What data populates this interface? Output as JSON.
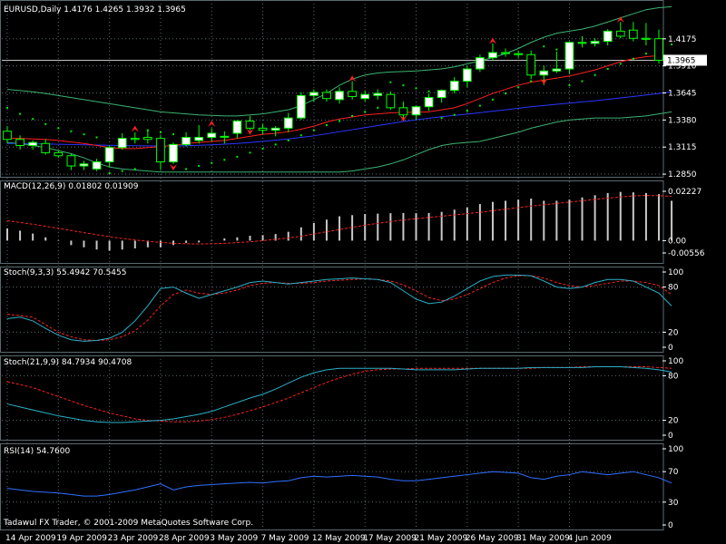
{
  "colors": {
    "background": "#000000",
    "text": "#ffffff",
    "grid": "#5a6a70",
    "candle_up_fill": "#ffffff",
    "candle_down_fill": "#000000",
    "candle_stroke": "#00ff00",
    "bollinger": "#3cb371",
    "ma_fast": "#ff2020",
    "ma_slow": "#2a36ff",
    "sar": "#00ee00",
    "fractal": "#ff2020",
    "macd_hist": "#c8c8c8",
    "macd_signal": "#ff2020",
    "stoch_main": "#2ab0c8",
    "stoch_signal": "#ff2020",
    "rsi": "#3070ff",
    "current_price_box": "#ffffff"
  },
  "footer_text": "Tadawul FX Trader, © 2001-2009 MetaQuotes Software Corp.",
  "chart_data": {
    "type": "candlestick",
    "x_labels": [
      {
        "label": "14 Apr 2009",
        "index": 0
      },
      {
        "label": "19 Apr 2009",
        "index": 4
      },
      {
        "label": "23 Apr 2009",
        "index": 8
      },
      {
        "label": "28 Apr 2009",
        "index": 12
      },
      {
        "label": "3 May 2009",
        "index": 16
      },
      {
        "label": "7 May 2009",
        "index": 20
      },
      {
        "label": "12 May 2009",
        "index": 24
      },
      {
        "label": "17 May 2009",
        "index": 28
      },
      {
        "label": "21 May 2009",
        "index": 32
      },
      {
        "label": "26 May 2009",
        "index": 36
      },
      {
        "label": "31 May 2009",
        "index": 40
      },
      {
        "label": "4 Jun 2009",
        "index": 44
      }
    ],
    "main": {
      "title": "EURUSD,Daily  1.4176 1.4265 1.3932 1.3965",
      "ylim": [
        1.2815,
        1.4555
      ],
      "ticks": [
        "1.4175",
        "1.3910",
        "1.3645",
        "1.3380",
        "1.3115",
        "1.2850"
      ],
      "current_price": "1.3965",
      "candles": [
        {
          "o": 1.327,
          "h": 1.332,
          "l": 1.315,
          "c": 1.319
        },
        {
          "o": 1.319,
          "h": 1.323,
          "l": 1.309,
          "c": 1.313
        },
        {
          "o": 1.313,
          "h": 1.318,
          "l": 1.309,
          "c": 1.316
        },
        {
          "o": 1.315,
          "h": 1.319,
          "l": 1.304,
          "c": 1.306
        },
        {
          "o": 1.306,
          "h": 1.308,
          "l": 1.301,
          "c": 1.303
        },
        {
          "o": 1.303,
          "h": 1.305,
          "l": 1.289,
          "c": 1.293
        },
        {
          "o": 1.293,
          "h": 1.298,
          "l": 1.289,
          "c": 1.295
        },
        {
          "o": 1.29,
          "h": 1.3,
          "l": 1.288,
          "c": 1.297
        },
        {
          "o": 1.297,
          "h": 1.313,
          "l": 1.292,
          "c": 1.311
        },
        {
          "o": 1.311,
          "h": 1.325,
          "l": 1.309,
          "c": 1.32
        },
        {
          "o": 1.32,
          "h": 1.326,
          "l": 1.315,
          "c": 1.319
        },
        {
          "o": 1.321,
          "h": 1.328,
          "l": 1.315,
          "c": 1.319
        },
        {
          "o": 1.32,
          "h": 1.323,
          "l": 1.289,
          "c": 1.297
        },
        {
          "o": 1.297,
          "h": 1.316,
          "l": 1.295,
          "c": 1.314
        },
        {
          "o": 1.314,
          "h": 1.326,
          "l": 1.312,
          "c": 1.321
        },
        {
          "o": 1.318,
          "h": 1.333,
          "l": 1.315,
          "c": 1.321
        },
        {
          "o": 1.321,
          "h": 1.33,
          "l": 1.317,
          "c": 1.325
        },
        {
          "o": 1.322,
          "h": 1.327,
          "l": 1.315,
          "c": 1.322
        },
        {
          "o": 1.325,
          "h": 1.338,
          "l": 1.32,
          "c": 1.337
        },
        {
          "o": 1.337,
          "h": 1.342,
          "l": 1.328,
          "c": 1.33
        },
        {
          "o": 1.33,
          "h": 1.334,
          "l": 1.324,
          "c": 1.328
        },
        {
          "o": 1.328,
          "h": 1.332,
          "l": 1.322,
          "c": 1.33
        },
        {
          "o": 1.33,
          "h": 1.345,
          "l": 1.326,
          "c": 1.34
        },
        {
          "o": 1.34,
          "h": 1.365,
          "l": 1.338,
          "c": 1.362
        },
        {
          "o": 1.362,
          "h": 1.368,
          "l": 1.356,
          "c": 1.365
        },
        {
          "o": 1.365,
          "h": 1.368,
          "l": 1.356,
          "c": 1.359
        },
        {
          "o": 1.358,
          "h": 1.37,
          "l": 1.354,
          "c": 1.366
        },
        {
          "o": 1.366,
          "h": 1.376,
          "l": 1.358,
          "c": 1.361
        },
        {
          "o": 1.359,
          "h": 1.367,
          "l": 1.356,
          "c": 1.363
        },
        {
          "o": 1.362,
          "h": 1.368,
          "l": 1.358,
          "c": 1.364
        },
        {
          "o": 1.363,
          "h": 1.366,
          "l": 1.348,
          "c": 1.35
        },
        {
          "o": 1.35,
          "h": 1.356,
          "l": 1.338,
          "c": 1.343
        },
        {
          "o": 1.343,
          "h": 1.352,
          "l": 1.338,
          "c": 1.351
        },
        {
          "o": 1.351,
          "h": 1.364,
          "l": 1.347,
          "c": 1.36
        },
        {
          "o": 1.36,
          "h": 1.368,
          "l": 1.355,
          "c": 1.367
        },
        {
          "o": 1.367,
          "h": 1.38,
          "l": 1.364,
          "c": 1.376
        },
        {
          "o": 1.376,
          "h": 1.391,
          "l": 1.37,
          "c": 1.388
        },
        {
          "o": 1.388,
          "h": 1.402,
          "l": 1.385,
          "c": 1.399
        },
        {
          "o": 1.399,
          "h": 1.413,
          "l": 1.396,
          "c": 1.404
        },
        {
          "o": 1.404,
          "h": 1.408,
          "l": 1.4,
          "c": 1.403
        },
        {
          "o": 1.403,
          "h": 1.406,
          "l": 1.399,
          "c": 1.402
        },
        {
          "o": 1.402,
          "h": 1.406,
          "l": 1.378,
          "c": 1.382
        },
        {
          "o": 1.382,
          "h": 1.391,
          "l": 1.372,
          "c": 1.386
        },
        {
          "o": 1.386,
          "h": 1.405,
          "l": 1.384,
          "c": 1.388
        },
        {
          "o": 1.388,
          "h": 1.415,
          "l": 1.383,
          "c": 1.414
        },
        {
          "o": 1.414,
          "h": 1.42,
          "l": 1.409,
          "c": 1.413
        },
        {
          "o": 1.413,
          "h": 1.418,
          "l": 1.41,
          "c": 1.415
        },
        {
          "o": 1.415,
          "h": 1.427,
          "l": 1.411,
          "c": 1.425
        },
        {
          "o": 1.425,
          "h": 1.434,
          "l": 1.418,
          "c": 1.42
        },
        {
          "o": 1.426,
          "h": 1.434,
          "l": 1.415,
          "c": 1.418
        },
        {
          "o": 1.418,
          "h": 1.433,
          "l": 1.411,
          "c": 1.417
        },
        {
          "o": 1.4176,
          "h": 1.4265,
          "l": 1.3932,
          "c": 1.3965
        }
      ],
      "bb_upper": [
        1.368,
        1.3668,
        1.3656,
        1.364,
        1.362,
        1.36,
        1.358,
        1.356,
        1.354,
        1.352,
        1.35,
        1.348,
        1.346,
        1.345,
        1.344,
        1.343,
        1.3425,
        1.342,
        1.342,
        1.343,
        1.344,
        1.346,
        1.348,
        1.352,
        1.358,
        1.364,
        1.372,
        1.378,
        1.382,
        1.384,
        1.385,
        1.3855,
        1.386,
        1.387,
        1.388,
        1.39,
        1.393,
        1.396,
        1.399,
        1.403,
        1.408,
        1.414,
        1.419,
        1.423,
        1.425,
        1.427,
        1.43,
        1.434,
        1.438,
        1.442,
        1.446,
        1.448,
        1.449
      ],
      "bb_lower": [
        1.316,
        1.315,
        1.313,
        1.311,
        1.308,
        1.305,
        1.301,
        1.296,
        1.292,
        1.29,
        1.289,
        1.288,
        1.287,
        1.287,
        1.287,
        1.287,
        1.287,
        1.287,
        1.287,
        1.287,
        1.287,
        1.287,
        1.287,
        1.287,
        1.287,
        1.287,
        1.287,
        1.288,
        1.29,
        1.292,
        1.295,
        1.299,
        1.304,
        1.309,
        1.313,
        1.315,
        1.316,
        1.317,
        1.32,
        1.323,
        1.326,
        1.33,
        1.333,
        1.336,
        1.338,
        1.339,
        1.34,
        1.34,
        1.34,
        1.341,
        1.342,
        1.344,
        1.346
      ],
      "ma_fast": [
        1.32,
        1.32,
        1.3195,
        1.319,
        1.318,
        1.3165,
        1.315,
        1.313,
        1.311,
        1.31,
        1.31,
        1.311,
        1.312,
        1.313,
        1.315,
        1.316,
        1.317,
        1.318,
        1.32,
        1.322,
        1.324,
        1.325,
        1.3265,
        1.329,
        1.332,
        1.336,
        1.339,
        1.341,
        1.343,
        1.344,
        1.345,
        1.3455,
        1.3455,
        1.346,
        1.348,
        1.35,
        1.354,
        1.359,
        1.364,
        1.368,
        1.372,
        1.375,
        1.377,
        1.379,
        1.381,
        1.384,
        1.387,
        1.391,
        1.395,
        1.398,
        1.4,
        1.401,
        1.4015
      ],
      "ma_slow": [
        1.315,
        1.315,
        1.3148,
        1.3145,
        1.3142,
        1.314,
        1.3137,
        1.3135,
        1.3132,
        1.313,
        1.3128,
        1.3127,
        1.3126,
        1.3126,
        1.3128,
        1.3132,
        1.3137,
        1.3143,
        1.315,
        1.316,
        1.317,
        1.3182,
        1.3195,
        1.321,
        1.3225,
        1.3245,
        1.3265,
        1.3285,
        1.3305,
        1.3325,
        1.3345,
        1.3365,
        1.3382,
        1.3398,
        1.3412,
        1.3425,
        1.3438,
        1.3452,
        1.3466,
        1.348,
        1.3495,
        1.351,
        1.3522,
        1.3534,
        1.3545,
        1.3557,
        1.3569,
        1.3582,
        1.3596,
        1.361,
        1.3625,
        1.364,
        1.3655
      ],
      "sar": [
        1.35,
        1.344,
        1.339,
        1.334,
        1.33,
        1.327,
        1.324,
        1.321,
        1.286,
        1.288,
        1.29,
        1.328,
        1.326,
        1.324,
        1.29,
        1.293,
        1.296,
        1.299,
        1.302,
        1.306,
        1.31,
        1.314,
        1.318,
        1.323,
        1.328,
        1.333,
        1.337,
        1.342,
        1.346,
        1.35,
        1.375,
        1.372,
        1.369,
        1.366,
        1.34,
        1.343,
        1.347,
        1.352,
        1.358,
        1.364,
        1.37,
        1.376,
        1.41,
        1.407,
        1.372,
        1.376,
        1.382,
        1.388,
        1.393,
        1.398,
        1.403,
        1.408,
        1.412
      ],
      "fractals_up": [
        {
          "i": 10,
          "v": 1.329
        },
        {
          "i": 16,
          "v": 1.334
        },
        {
          "i": 27,
          "v": 1.378
        },
        {
          "i": 38,
          "v": 1.415
        },
        {
          "i": 48,
          "v": 1.436
        }
      ],
      "fractals_down": [
        {
          "i": 13,
          "v": 1.292
        },
        {
          "i": 19,
          "v": 1.327
        },
        {
          "i": 31,
          "v": 1.34
        },
        {
          "i": 42,
          "v": 1.376
        }
      ]
    },
    "macd": {
      "title": "MACD(12,26,9) 0.01802 0.01909",
      "ylim": [
        -0.00556,
        0.02227
      ],
      "ticks": [
        "0.02227",
        "0.00",
        "-0.00556"
      ],
      "hist": [
        0.0055,
        0.0045,
        0.0032,
        0.0015,
        0.0,
        -0.002,
        -0.003,
        -0.004,
        -0.0045,
        -0.004,
        -0.0035,
        -0.003,
        -0.003,
        -0.002,
        -0.001,
        -0.0008,
        0.0,
        0.001,
        0.0015,
        0.0022,
        0.0025,
        0.003,
        0.004,
        0.006,
        0.008,
        0.0095,
        0.011,
        0.0115,
        0.012,
        0.0122,
        0.0124,
        0.0125,
        0.0124,
        0.0125,
        0.013,
        0.014,
        0.015,
        0.0165,
        0.0175,
        0.018,
        0.0185,
        0.019,
        0.018,
        0.018,
        0.0185,
        0.0195,
        0.0205,
        0.0215,
        0.022,
        0.0218,
        0.0215,
        0.021,
        0.018
      ],
      "signal": [
        0.009,
        0.0082,
        0.0074,
        0.0065,
        0.0056,
        0.0046,
        0.0036,
        0.0027,
        0.0018,
        0.001,
        0.0003,
        -0.0003,
        -0.0008,
        -0.0012,
        -0.0014,
        -0.0015,
        -0.0014,
        -0.0012,
        -0.0009,
        -0.0005,
        0.0,
        0.0006,
        0.0012,
        0.002,
        0.003,
        0.004,
        0.005,
        0.006,
        0.007,
        0.0078,
        0.0086,
        0.0093,
        0.0099,
        0.0105,
        0.011,
        0.0116,
        0.0122,
        0.0128,
        0.0135,
        0.0142,
        0.0149,
        0.0156,
        0.0162,
        0.0168,
        0.0174,
        0.018,
        0.0186,
        0.0192,
        0.0197,
        0.0202,
        0.0204,
        0.0203,
        0.02
      ]
    },
    "stoch1": {
      "title": "Stoch(9,3,3) 55.4942 70.5455",
      "ylim": [
        0,
        100
      ],
      "ticks": [
        "100",
        "80",
        "20",
        "0"
      ],
      "main": [
        38,
        40,
        35,
        25,
        16,
        10,
        8,
        9,
        12,
        20,
        35,
        55,
        78,
        80,
        72,
        65,
        70,
        75,
        80,
        86,
        88,
        86,
        84,
        86,
        88,
        90,
        91,
        92,
        91,
        90,
        86,
        75,
        64,
        58,
        60,
        68,
        78,
        88,
        94,
        96,
        96,
        95,
        88,
        80,
        78,
        80,
        86,
        90,
        90,
        88,
        80,
        72,
        55
      ],
      "signal": [
        44,
        42,
        40,
        30,
        20,
        14,
        10,
        9,
        10,
        14,
        22,
        36,
        55,
        70,
        76,
        72,
        70,
        72,
        76,
        82,
        85,
        86,
        85,
        85,
        86,
        88,
        89,
        90,
        91,
        90,
        88,
        83,
        75,
        66,
        62,
        64,
        70,
        78,
        86,
        92,
        95,
        95,
        92,
        86,
        82,
        80,
        82,
        85,
        88,
        88,
        86,
        82,
        70
      ]
    },
    "stoch2": {
      "title": "Stoch(21,9,9) 84.7934 90.4708",
      "ylim": [
        0,
        100
      ],
      "ticks": [
        "100",
        "80",
        "20",
        "0"
      ],
      "main": [
        42,
        38,
        34,
        30,
        26,
        23,
        20,
        18,
        17,
        17,
        18,
        19,
        20,
        22,
        25,
        28,
        32,
        38,
        44,
        50,
        55,
        62,
        70,
        78,
        84,
        88,
        90,
        90,
        90,
        90,
        90,
        89,
        88,
        88,
        88,
        88,
        89,
        90,
        90,
        90,
        90,
        91,
        91,
        91,
        91,
        91,
        92,
        92,
        92,
        91,
        90,
        88,
        85
      ],
      "signal": [
        72,
        68,
        64,
        58,
        52,
        46,
        40,
        35,
        30,
        26,
        22,
        20,
        19,
        18,
        18,
        19,
        21,
        24,
        28,
        33,
        38,
        44,
        50,
        57,
        64,
        71,
        77,
        82,
        86,
        88,
        89,
        89,
        90,
        90,
        90,
        90,
        90,
        90,
        90,
        90,
        90,
        90,
        91,
        91,
        91,
        92,
        92,
        92,
        92,
        92,
        92,
        91,
        90
      ]
    },
    "rsi": {
      "title": "RSI(14) 54.7600",
      "ylim": [
        0,
        100
      ],
      "ticks": [
        "100",
        "70",
        "30",
        "0"
      ],
      "values": [
        48,
        46,
        44,
        43,
        42,
        40,
        38,
        38,
        40,
        43,
        46,
        50,
        54,
        46,
        50,
        52,
        53,
        54,
        55,
        56,
        55,
        57,
        58,
        62,
        64,
        63,
        64,
        65,
        64,
        63,
        60,
        58,
        58,
        60,
        62,
        64,
        66,
        68,
        70,
        69,
        68,
        62,
        60,
        64,
        66,
        70,
        68,
        66,
        68,
        70,
        66,
        62,
        55
      ]
    }
  }
}
